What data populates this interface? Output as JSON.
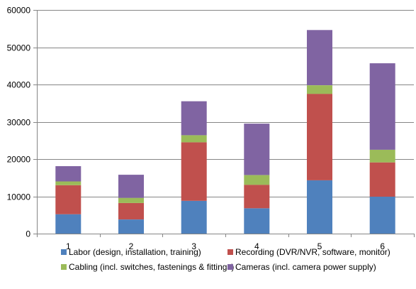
{
  "chart_data": {
    "type": "bar",
    "stacked": true,
    "title": "",
    "xlabel": "",
    "ylabel": "",
    "categories": [
      "1",
      "2",
      "3",
      "4",
      "5",
      "6"
    ],
    "ylim": [
      0,
      60000
    ],
    "yticks": [
      0,
      10000,
      20000,
      30000,
      40000,
      50000,
      60000
    ],
    "grid": true,
    "legend_position": "bottom",
    "series": [
      {
        "name": "Labor (design, installation, training)",
        "color": "#4F81BD",
        "values": [
          5200,
          3800,
          8800,
          6800,
          14300,
          9900
        ]
      },
      {
        "name": "Recording (DVR/NVR, software, monitor)",
        "color": "#C0504D",
        "values": [
          7800,
          4400,
          15700,
          6300,
          23200,
          9200
        ]
      },
      {
        "name": "Cabling (incl. switches, fastenings & fittings)",
        "color": "#9BBB59",
        "values": [
          1000,
          1400,
          1900,
          2600,
          2300,
          3400
        ]
      },
      {
        "name": "Cameras (incl. camera power supply)",
        "color": "#8064A2",
        "values": [
          4100,
          6200,
          9100,
          13800,
          14800,
          23200
        ]
      }
    ]
  }
}
